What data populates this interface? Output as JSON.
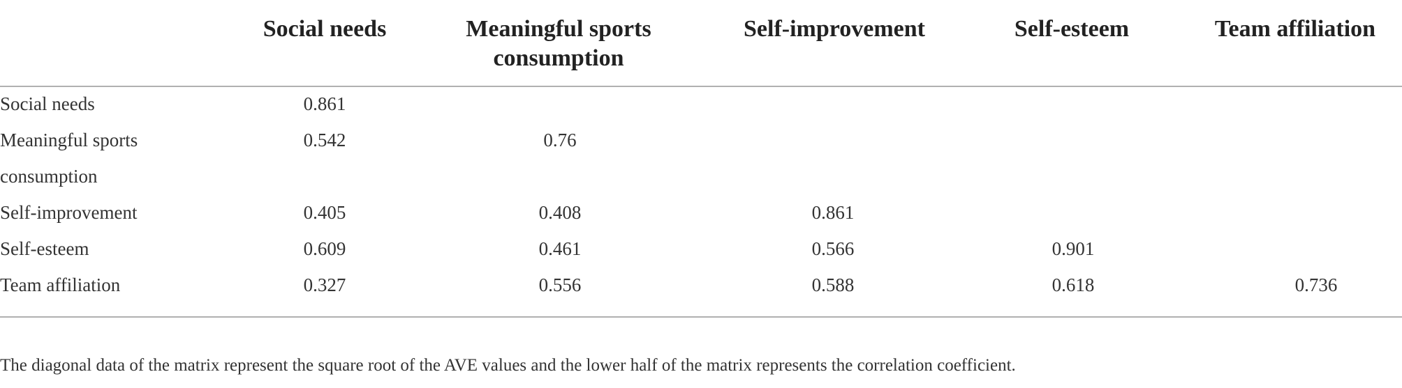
{
  "table": {
    "columns": [
      "Social needs",
      "Meaningful sports consumption",
      "Self-improvement",
      "Self-esteem",
      "Team affiliation"
    ],
    "rows": [
      {
        "label": "Social needs",
        "values": [
          "0.861",
          "",
          "",
          "",
          ""
        ]
      },
      {
        "label": "Meaningful sports consumption",
        "values": [
          "0.542",
          "0.76",
          "",
          "",
          ""
        ]
      },
      {
        "label": "Self-improvement",
        "values": [
          "0.405",
          "0.408",
          "0.861",
          "",
          ""
        ]
      },
      {
        "label": "Self-esteem",
        "values": [
          "0.609",
          "0.461",
          "0.566",
          "0.901",
          ""
        ]
      },
      {
        "label": "Team affiliation",
        "values": [
          "0.327",
          "0.556",
          "0.588",
          "0.618",
          "0.736"
        ]
      }
    ],
    "note": "The diagonal data of the matrix represent the square root of the AVE values and the lower half of the matrix represents the correlation coefficient."
  },
  "chart_data": {
    "type": "table",
    "categories": [
      "Social needs",
      "Meaningful sports consumption",
      "Self-improvement",
      "Self-esteem",
      "Team affiliation"
    ],
    "matrix": [
      [
        0.861,
        null,
        null,
        null,
        null
      ],
      [
        0.542,
        0.76,
        null,
        null,
        null
      ],
      [
        0.405,
        0.408,
        0.861,
        null,
        null
      ],
      [
        0.609,
        0.461,
        0.566,
        0.901,
        null
      ],
      [
        0.327,
        0.556,
        0.588,
        0.618,
        0.736
      ]
    ]
  }
}
